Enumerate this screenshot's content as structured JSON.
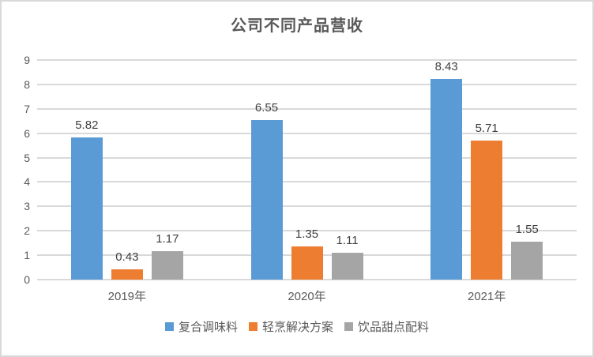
{
  "chart_data": {
    "type": "bar",
    "title": "公司不同产品营收",
    "categories": [
      "2019年",
      "2020年",
      "2021年"
    ],
    "series": [
      {
        "name": "复合调味料",
        "color": "#5B9BD5",
        "values": [
          5.82,
          6.55,
          8.43
        ]
      },
      {
        "name": "轻烹解决方案",
        "color": "#ED7D31",
        "values": [
          0.43,
          1.35,
          5.71
        ]
      },
      {
        "name": "饮品甜点配料",
        "color": "#A5A5A5",
        "values": [
          1.17,
          1.11,
          1.55
        ]
      }
    ],
    "data_labels": [
      "5.82",
      "0.43",
      "1.17",
      "6.55",
      "1.35",
      "1.11",
      "8.43",
      "5.71",
      "1.55"
    ],
    "ylim": [
      0,
      9
    ],
    "ytick_step": 1,
    "ytick_labels": [
      "0",
      "1",
      "2",
      "3",
      "4",
      "5",
      "6",
      "7",
      "8",
      "9"
    ],
    "grid": true,
    "legend_position": "bottom",
    "colors": {
      "gridline": "#D9D9D9",
      "axis_line": "#D9D9D9",
      "border": "#D9D9D9",
      "title_text": "#595959",
      "axis_text": "#595959",
      "data_label_text": "#404040"
    }
  }
}
